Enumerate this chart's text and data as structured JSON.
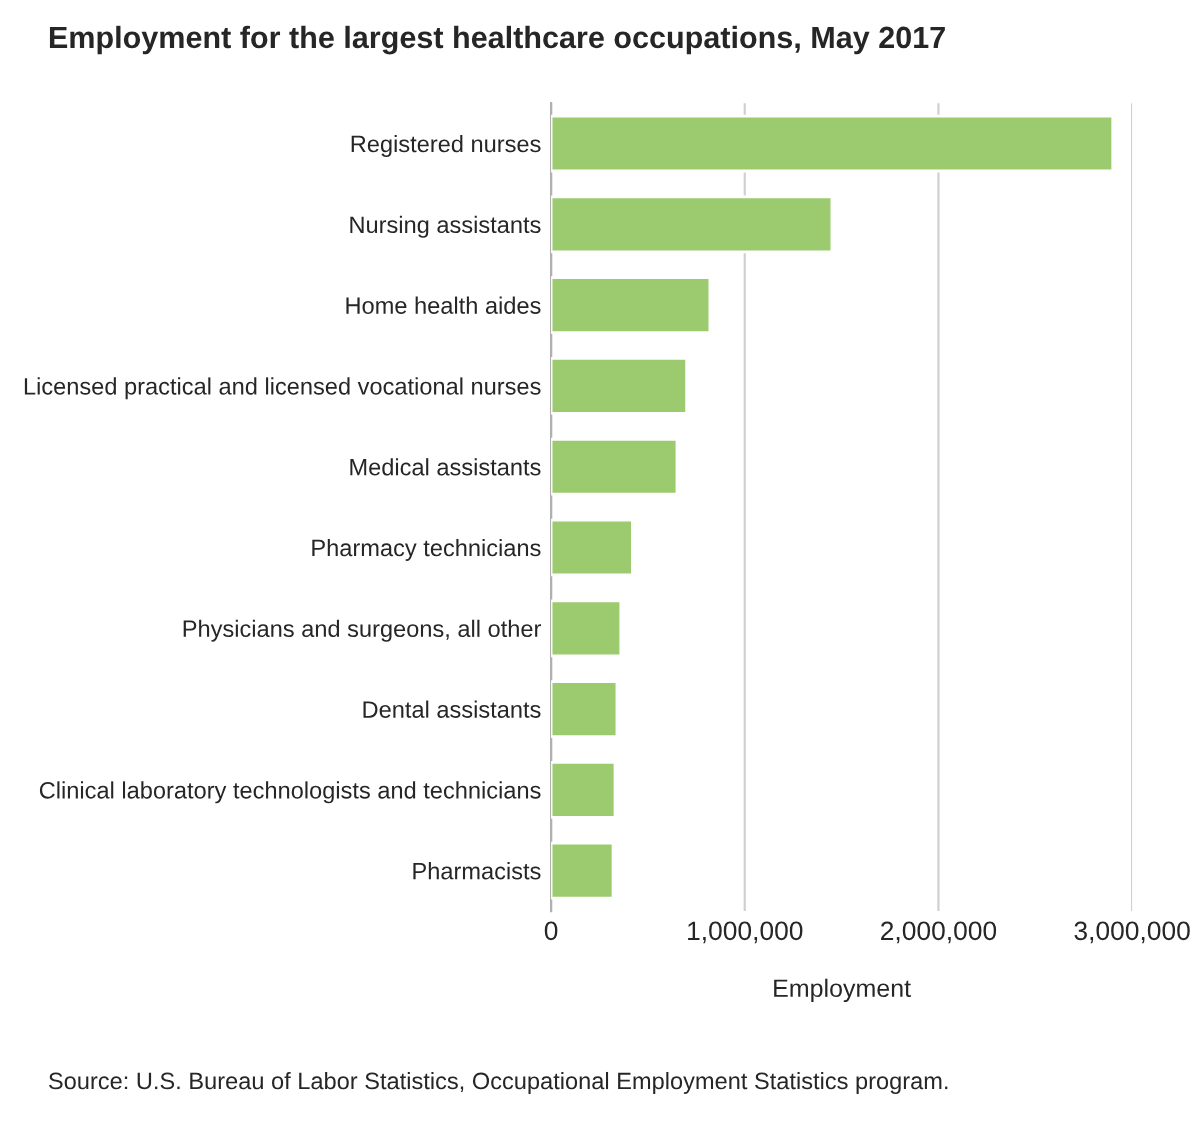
{
  "chart_data": {
    "type": "bar",
    "orientation": "horizontal",
    "title": "Employment for the largest healthcare occupations, May 2017",
    "categories": [
      "Registered nurses",
      "Nursing assistants",
      "Home health aides",
      "Licensed practical and licensed vocational nurses",
      "Medical assistants",
      "Pharmacy technicians",
      "Physicians and surgeons, all other",
      "Dental assistants",
      "Clinical laboratory technologists and technicians",
      "Pharmacists"
    ],
    "values": [
      2900000,
      1450000,
      820000,
      700000,
      650000,
      420000,
      360000,
      340000,
      330000,
      320000
    ],
    "color": "#9bcb6e",
    "xlim": [
      0,
      3000000
    ],
    "xticks": [
      {
        "value": 0,
        "label": "0"
      },
      {
        "value": 1000000,
        "label": "1,000,000"
      },
      {
        "value": 2000000,
        "label": "2,000,000"
      },
      {
        "value": 3000000,
        "label": "3,000,000"
      }
    ],
    "xlabel": "Employment",
    "grid": "x",
    "annotations": [
      "Source: U.S. Bureau of Labor Statistics, Occupational Employment Statistics program."
    ]
  }
}
